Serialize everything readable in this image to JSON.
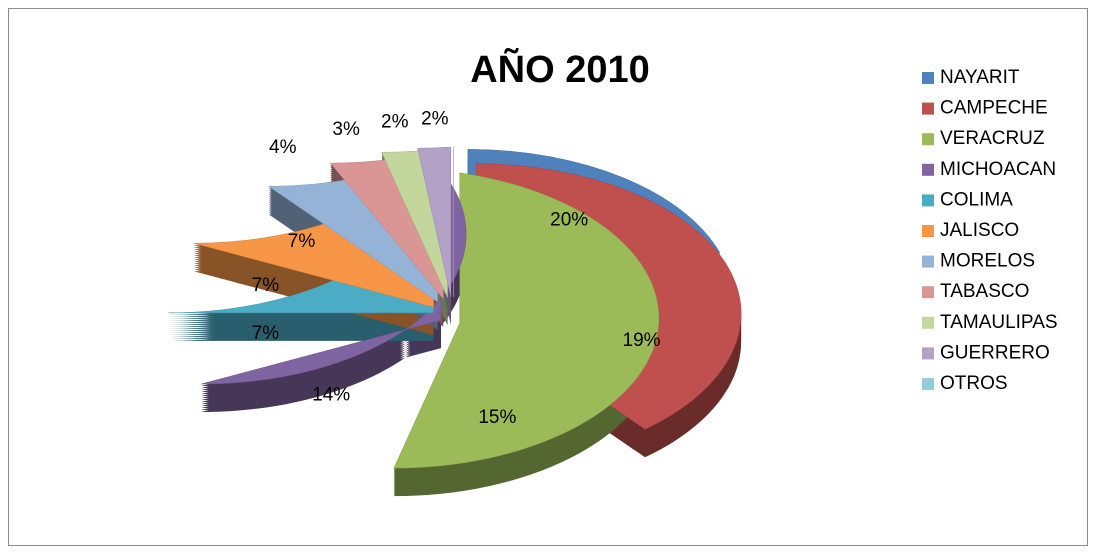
{
  "chart_data": {
    "type": "pie",
    "title": "AÑO 2010",
    "categories": [
      "NAYARIT",
      "CAMPECHE",
      "VERACRUZ",
      "MICHOACAN",
      "COLIMA",
      "JALISCO",
      "MORELOS",
      "TABASCO",
      "TAMAULIPAS",
      "GUERRERO",
      "OTROS"
    ],
    "values": [
      20,
      19,
      15,
      14,
      7,
      7,
      7,
      4,
      3,
      2,
      2
    ],
    "value_labels": [
      "20%",
      "19%",
      "15%",
      "14%",
      "7%",
      "7%",
      "7%",
      "4%",
      "3%",
      "2%",
      "2%"
    ],
    "colors": [
      "#4f81bd",
      "#c0504d",
      "#9bbb59",
      "#8064a2",
      "#4bacc6",
      "#f79646",
      "#95b3d7",
      "#d99694",
      "#c3d69b",
      "#b3a2c7",
      "#93cddd"
    ],
    "legend": "right"
  }
}
